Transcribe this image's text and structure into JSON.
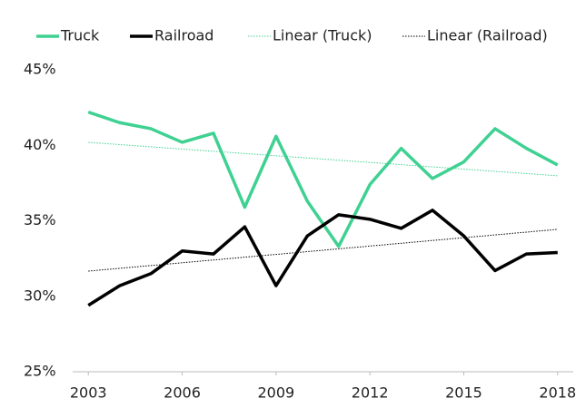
{
  "chart_data": {
    "type": "line",
    "x": [
      2003,
      2004,
      2005,
      2006,
      2007,
      2008,
      2009,
      2010,
      2011,
      2012,
      2013,
      2014,
      2015,
      2016,
      2017,
      2018
    ],
    "series": [
      {
        "name": "Truck",
        "color": "#3fd192",
        "values": [
          42.2,
          41.5,
          41.1,
          40.2,
          40.8,
          35.9,
          40.6,
          36.3,
          33.3,
          37.4,
          39.8,
          37.8,
          38.9,
          41.1,
          39.8,
          38.7
        ]
      },
      {
        "name": "Railroad",
        "color": "#000000",
        "values": [
          29.4,
          30.7,
          31.5,
          33.0,
          32.8,
          34.6,
          30.7,
          34.0,
          35.4,
          35.1,
          34.5,
          35.7,
          34.0,
          31.7,
          32.8,
          32.9
        ]
      }
    ],
    "trendlines": [
      {
        "name": "Linear (Truck)",
        "of": 0,
        "color": "#3fd192"
      },
      {
        "name": "Linear (Railroad)",
        "of": 1,
        "color": "#000000"
      }
    ],
    "xlim": [
      2002.5,
      2018.5
    ],
    "xticks": [
      2003,
      2006,
      2009,
      2012,
      2015,
      2018
    ],
    "ylim": [
      25,
      45
    ],
    "yticks": [
      {
        "value": 25,
        "label": "25%"
      },
      {
        "value": 30,
        "label": "30%"
      },
      {
        "value": 35,
        "label": "35%"
      },
      {
        "value": 40,
        "label": "40%"
      },
      {
        "value": 45,
        "label": "45%"
      }
    ],
    "grid": false,
    "legend": "top"
  }
}
